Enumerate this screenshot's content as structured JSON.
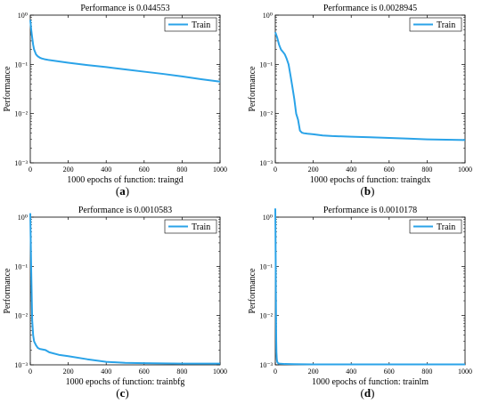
{
  "theme": {
    "series_color": "#2aa3e8",
    "axis_color": "#000000",
    "background": "#ffffff"
  },
  "chart_data": [
    {
      "type": "line",
      "title": "Performance is 0.044553",
      "xlabel": "1000 epochs of function: traingd",
      "ylabel": "Performance",
      "ylog": true,
      "xlim": [
        0,
        1000
      ],
      "ylim": [
        0.001,
        1
      ],
      "xticks": [
        0,
        200,
        400,
        600,
        800,
        1000
      ],
      "yticks": [
        0.001,
        0.01,
        0.1,
        1
      ],
      "legend": "top-right",
      "grid": false,
      "caption": "a",
      "series": [
        {
          "name": "Train",
          "x": [
            0,
            5,
            10,
            15,
            20,
            30,
            40,
            50,
            60,
            80,
            100,
            150,
            200,
            300,
            400,
            500,
            600,
            700,
            800,
            900,
            1000
          ],
          "y": [
            0.8,
            0.5,
            0.35,
            0.25,
            0.2,
            0.16,
            0.145,
            0.137,
            0.132,
            0.126,
            0.122,
            0.115,
            0.108,
            0.097,
            0.088,
            0.079,
            0.071,
            0.064,
            0.057,
            0.05,
            0.0446
          ]
        }
      ]
    },
    {
      "type": "line",
      "title": "Performance is 0.0028945",
      "xlabel": "1000 epochs of function: traingdx",
      "ylabel": "Performance",
      "ylog": true,
      "xlim": [
        0,
        1000
      ],
      "ylim": [
        0.001,
        1
      ],
      "xticks": [
        0,
        200,
        400,
        600,
        800,
        1000
      ],
      "yticks": [
        0.001,
        0.01,
        0.1,
        1
      ],
      "legend": "top-right",
      "grid": false,
      "caption": "b",
      "series": [
        {
          "name": "Train",
          "x": [
            0,
            10,
            20,
            30,
            40,
            50,
            60,
            70,
            80,
            90,
            100,
            110,
            120,
            130,
            140,
            150,
            170,
            200,
            250,
            300,
            400,
            500,
            600,
            700,
            800,
            900,
            1000
          ],
          "y": [
            0.45,
            0.35,
            0.25,
            0.2,
            0.18,
            0.16,
            0.13,
            0.1,
            0.06,
            0.035,
            0.02,
            0.01,
            0.0075,
            0.0045,
            0.0041,
            0.004,
            0.0039,
            0.0038,
            0.0036,
            0.0035,
            0.0034,
            0.0033,
            0.0032,
            0.0031,
            0.003,
            0.00295,
            0.0029
          ]
        }
      ]
    },
    {
      "type": "line",
      "title": "Performance is 0.0010583",
      "xlabel": "1000 epochs of function: trainbfg",
      "ylabel": "Performance",
      "ylog": true,
      "xlim": [
        0,
        1000
      ],
      "ylim": [
        0.001,
        1
      ],
      "xticks": [
        0,
        200,
        400,
        600,
        800,
        1000
      ],
      "yticks": [
        0.001,
        0.01,
        0.1,
        1
      ],
      "legend": "top-right",
      "grid": false,
      "caption": "c",
      "series": [
        {
          "name": "Train",
          "x": [
            0,
            2,
            5,
            8,
            10,
            15,
            20,
            30,
            40,
            50,
            80,
            100,
            150,
            200,
            300,
            400,
            500,
            600,
            700,
            800,
            900,
            1000
          ],
          "y": [
            1.2,
            0.4,
            0.08,
            0.02,
            0.008,
            0.004,
            0.003,
            0.0025,
            0.0022,
            0.0021,
            0.002,
            0.0018,
            0.0016,
            0.0015,
            0.0013,
            0.00115,
            0.0011,
            0.00108,
            0.00107,
            0.00106,
            0.00106,
            0.00106
          ]
        }
      ]
    },
    {
      "type": "line",
      "title": "Performance is 0.0010178",
      "xlabel": "1000 epochs of function: trainlm",
      "ylabel": "Performance",
      "ylog": true,
      "xlim": [
        0,
        1000
      ],
      "ylim": [
        0.001,
        1
      ],
      "xticks": [
        0,
        200,
        400,
        600,
        800,
        1000
      ],
      "yticks": [
        0.001,
        0.01,
        0.1,
        1
      ],
      "legend": "top-right",
      "grid": false,
      "caption": "d",
      "series": [
        {
          "name": "Train",
          "x": [
            0,
            1,
            2,
            3,
            4,
            5,
            6,
            8,
            10,
            15,
            20,
            50,
            100,
            200,
            400,
            600,
            800,
            1000
          ],
          "y": [
            1.5,
            0.6,
            0.15,
            0.03,
            0.008,
            0.003,
            0.0018,
            0.0013,
            0.00115,
            0.00108,
            0.00106,
            0.00104,
            0.00103,
            0.00102,
            0.00102,
            0.00102,
            0.00102,
            0.00102
          ]
        }
      ]
    }
  ]
}
